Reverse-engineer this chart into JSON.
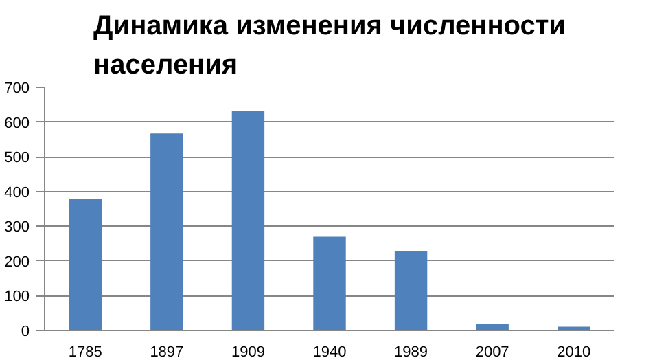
{
  "chart_data": {
    "type": "bar",
    "title": "Динамика изменения численности\nнаселения",
    "categories": [
      "1785",
      "1897",
      "1909",
      "1940",
      "1989",
      "2007",
      "2010"
    ],
    "values": [
      378,
      567,
      633,
      270,
      228,
      20,
      11
    ],
    "color": "#4f81bd",
    "ylim": [
      0,
      700
    ],
    "yticks": [
      0,
      100,
      200,
      300,
      400,
      500,
      600,
      700
    ],
    "grid": "y"
  }
}
